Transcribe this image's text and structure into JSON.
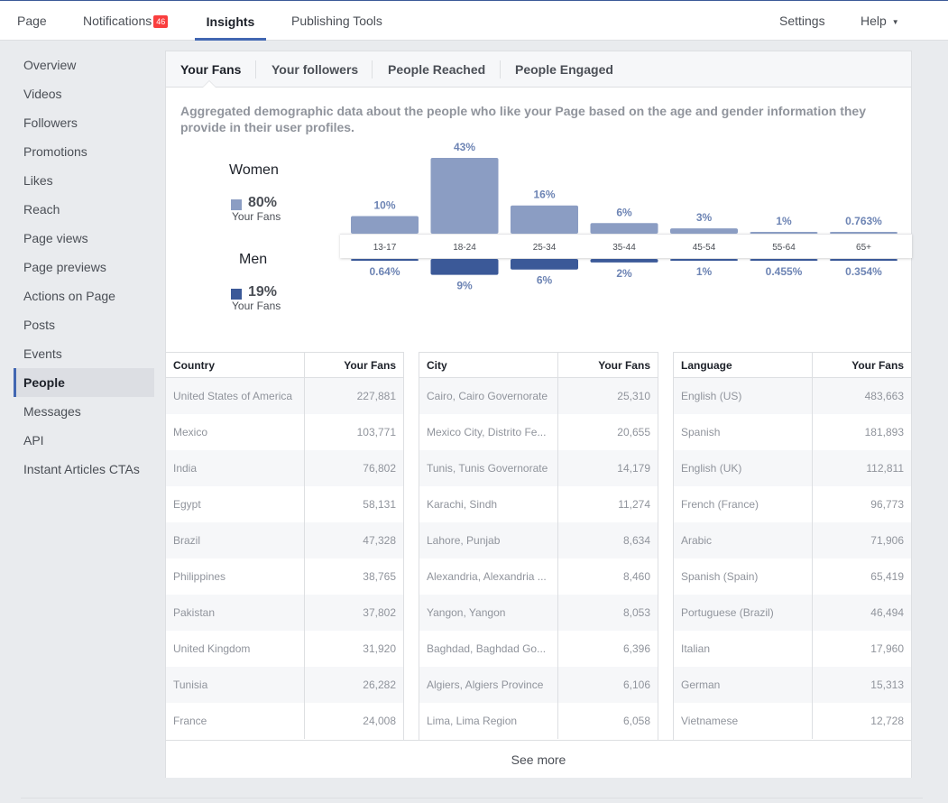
{
  "topnav": {
    "page": "Page",
    "notifications": "Notifications",
    "notifications_count": "46",
    "insights": "Insights",
    "publishing_tools": "Publishing Tools",
    "settings": "Settings",
    "help": "Help"
  },
  "sidebar": {
    "items": [
      {
        "label": "Overview"
      },
      {
        "label": "Videos"
      },
      {
        "label": "Followers"
      },
      {
        "label": "Promotions"
      },
      {
        "label": "Likes"
      },
      {
        "label": "Reach"
      },
      {
        "label": "Page views"
      },
      {
        "label": "Page previews"
      },
      {
        "label": "Actions on Page"
      },
      {
        "label": "Posts"
      },
      {
        "label": "Events"
      },
      {
        "label": "People"
      },
      {
        "label": "Messages"
      },
      {
        "label": "API"
      },
      {
        "label": "Instant Articles CTAs"
      }
    ],
    "active": "People"
  },
  "tabs": {
    "your_fans": "Your Fans",
    "your_followers": "Your followers",
    "people_reached": "People Reached",
    "people_engaged": "People Engaged"
  },
  "description": "Aggregated demographic data about the people who like your Page based on the age and gender information they provide in their user profiles.",
  "gender": {
    "women": {
      "title": "Women",
      "pct": "80%",
      "sub": "Your Fans"
    },
    "men": {
      "title": "Men",
      "pct": "19%",
      "sub": "Your Fans"
    }
  },
  "colors": {
    "women": "#8b9dc3",
    "men": "#3b5998"
  },
  "chart_data": {
    "type": "bar",
    "categories": [
      "13-17",
      "18-24",
      "25-34",
      "35-44",
      "45-54",
      "55-64",
      "65+"
    ],
    "series": [
      {
        "name": "Women",
        "values": [
          10,
          43,
          16,
          6,
          3,
          1,
          0.763
        ],
        "labels": [
          "10%",
          "43%",
          "16%",
          "6%",
          "3%",
          "1%",
          "0.763%"
        ]
      },
      {
        "name": "Men",
        "values": [
          0.64,
          9,
          6,
          2,
          1,
          0.455,
          0.354
        ],
        "labels": [
          "0.64%",
          "9%",
          "6%",
          "2%",
          "1%",
          "0.455%",
          "0.354%"
        ]
      }
    ]
  },
  "tables": {
    "country": {
      "header": [
        "Country",
        "Your Fans"
      ],
      "rows": [
        [
          "United States of America",
          "227,881"
        ],
        [
          "Mexico",
          "103,771"
        ],
        [
          "India",
          "76,802"
        ],
        [
          "Egypt",
          "58,131"
        ],
        [
          "Brazil",
          "47,328"
        ],
        [
          "Philippines",
          "38,765"
        ],
        [
          "Pakistan",
          "37,802"
        ],
        [
          "United Kingdom",
          "31,920"
        ],
        [
          "Tunisia",
          "26,282"
        ],
        [
          "France",
          "24,008"
        ]
      ]
    },
    "city": {
      "header": [
        "City",
        "Your Fans"
      ],
      "rows": [
        [
          "Cairo, Cairo Governorate",
          "25,310"
        ],
        [
          "Mexico City, Distrito Fe...",
          "20,655"
        ],
        [
          "Tunis, Tunis Governorate",
          "14,179"
        ],
        [
          "Karachi, Sindh",
          "11,274"
        ],
        [
          "Lahore, Punjab",
          "8,634"
        ],
        [
          "Alexandria, Alexandria ...",
          "8,460"
        ],
        [
          "Yangon, Yangon",
          "8,053"
        ],
        [
          "Baghdad, Baghdad Go...",
          "6,396"
        ],
        [
          "Algiers, Algiers Province",
          "6,106"
        ],
        [
          "Lima, Lima Region",
          "6,058"
        ]
      ]
    },
    "language": {
      "header": [
        "Language",
        "Your Fans"
      ],
      "rows": [
        [
          "English (US)",
          "483,663"
        ],
        [
          "Spanish",
          "181,893"
        ],
        [
          "English (UK)",
          "112,811"
        ],
        [
          "French (France)",
          "96,773"
        ],
        [
          "Arabic",
          "71,906"
        ],
        [
          "Spanish (Spain)",
          "65,419"
        ],
        [
          "Portuguese (Brazil)",
          "46,494"
        ],
        [
          "Italian",
          "17,960"
        ],
        [
          "German",
          "15,313"
        ],
        [
          "Vietnamese",
          "12,728"
        ]
      ]
    }
  },
  "see_more": "See more"
}
